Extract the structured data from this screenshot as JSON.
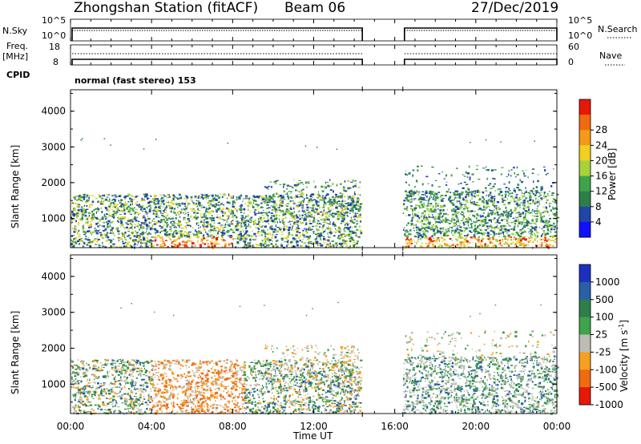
{
  "header": {
    "station": "Zhongshan Station (fitACF)",
    "beam": "Beam 06",
    "date": "27/Dec/2019"
  },
  "panels": {
    "nsky_label": "N.Sky",
    "nsky_ticks": [
      "10^5",
      "10^0"
    ],
    "nsearch_label": "N.Search",
    "nsearch_ticks": [
      "10^5",
      "10^0"
    ],
    "freq_label_1": "Freq.",
    "freq_label_2": "[MHz]",
    "freq_ticks": [
      "18",
      "8"
    ],
    "nave_label": "Nave",
    "nave_ticks": [
      "60",
      "0"
    ],
    "cpid_label": "CPID",
    "cpid_text": "normal (fast stereo) 153"
  },
  "colors": {
    "power_scale": [
      "#1010ff",
      "#1f46a8",
      "#2d7f4a",
      "#3fa34a",
      "#a6d23a",
      "#f0d020",
      "#f59a18",
      "#f26a10",
      "#e81808"
    ],
    "velocity_scale": [
      "#e81808",
      "#f26a10",
      "#f5a020",
      "#bdbdb5",
      "#3fa34a",
      "#2d7f4a",
      "#2a5fa8",
      "#1c30c0"
    ]
  },
  "chart_data": [
    {
      "type": "heatmap",
      "title": "",
      "xlabel": "Time UT",
      "ylabel": "Slant Range [km]",
      "x_ticks": [
        "00:00",
        "04:00",
        "08:00",
        "12:00",
        "16:00",
        "20:00",
        "00:00"
      ],
      "y_ticks": [
        "1000",
        "2000",
        "3000",
        "4000"
      ],
      "xlim": [
        0,
        24
      ],
      "ylim": [
        180,
        4600
      ],
      "data_gap_hours": [
        14.4,
        16.4
      ],
      "colorbar": {
        "label": "Power [dB]",
        "ticks": [
          "4",
          "8",
          "12",
          "16",
          "20",
          "24",
          "28"
        ]
      }
    },
    {
      "type": "heatmap",
      "title": "",
      "xlabel": "Time UT",
      "ylabel": "Slant Range [km]",
      "x_ticks": [
        "00:00",
        "04:00",
        "08:00",
        "12:00",
        "16:00",
        "20:00",
        "00:00"
      ],
      "y_ticks": [
        "1000",
        "2000",
        "3000",
        "4000"
      ],
      "xlim": [
        0,
        24
      ],
      "ylim": [
        180,
        4600
      ],
      "data_gap_hours": [
        14.4,
        16.4
      ],
      "colorbar": {
        "label": "Velocity [m s",
        "label_sup": "-1",
        "ticks": [
          "1000",
          "500",
          "100",
          "25",
          "-25",
          "-100",
          "-500",
          "-1000"
        ]
      }
    }
  ]
}
